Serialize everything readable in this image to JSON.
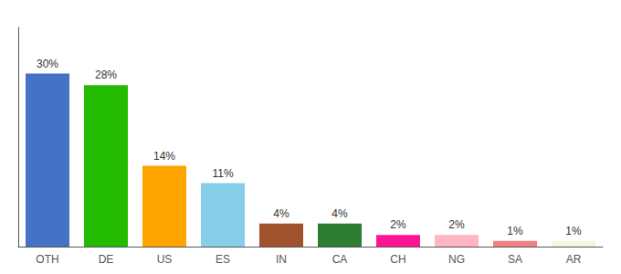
{
  "chart_data": {
    "type": "bar",
    "categories": [
      "OTH",
      "DE",
      "US",
      "ES",
      "IN",
      "CA",
      "CH",
      "NG",
      "SA",
      "AR"
    ],
    "values": [
      30,
      28,
      14,
      11,
      4,
      4,
      2,
      2,
      1,
      1
    ],
    "value_labels": [
      "30%",
      "28%",
      "14%",
      "11%",
      "4%",
      "4%",
      "2%",
      "2%",
      "1%",
      "1%"
    ],
    "colors": [
      "#4472c4",
      "#22bb00",
      "#ffa500",
      "#87ceeb",
      "#a0522d",
      "#2e7d32",
      "#ff1493",
      "#ffb6c1",
      "#f08080",
      "#f5f5dc"
    ],
    "ylim": [
      0,
      38
    ],
    "grid": false,
    "data_labels": true,
    "tick_labels": "x"
  }
}
